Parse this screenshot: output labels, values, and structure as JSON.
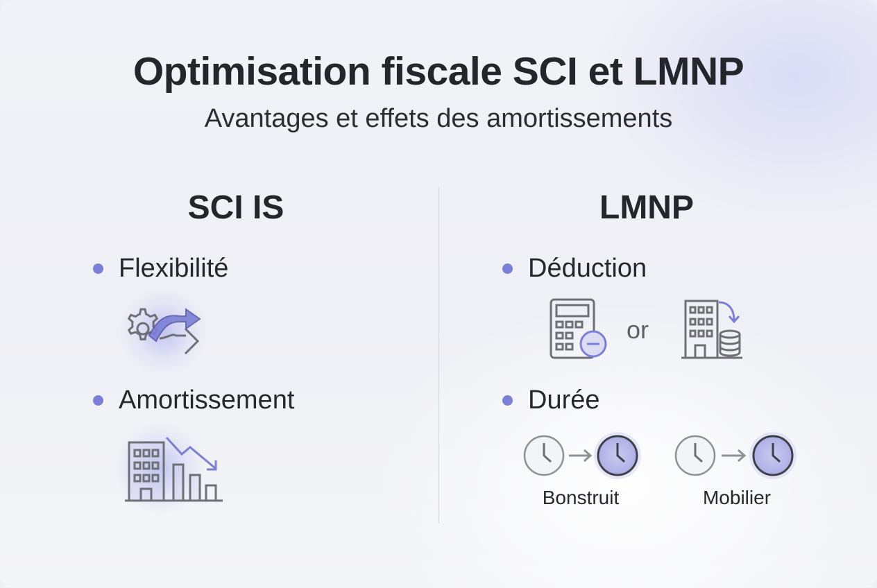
{
  "header": {
    "title": "Optimisation fiscale SCI et LMNP",
    "subtitle": "Avantages et effets des amortissements"
  },
  "left": {
    "heading": "SCI IS",
    "items": [
      {
        "label": "Flexibilité",
        "icon": "gear-arrows-icon"
      },
      {
        "label": "Amortissement",
        "icon": "building-declining-chart-icon"
      }
    ]
  },
  "right": {
    "heading": "LMNP",
    "items": [
      {
        "label": "Déduction",
        "icons": [
          "calculator-minus-icon",
          "building-coins-icon"
        ],
        "connector": "or"
      },
      {
        "label": "Durée",
        "durations": [
          {
            "label": "Bonstruit",
            "icon": "clock-arrow-clock-icon"
          },
          {
            "label": "Mobilier",
            "icon": "clock-arrow-clock-icon"
          }
        ]
      }
    ]
  },
  "colors": {
    "accent": "#7b7fd6",
    "text": "#24262c",
    "icon_stroke": "#6e7078",
    "divider": "#d3d5dc"
  }
}
